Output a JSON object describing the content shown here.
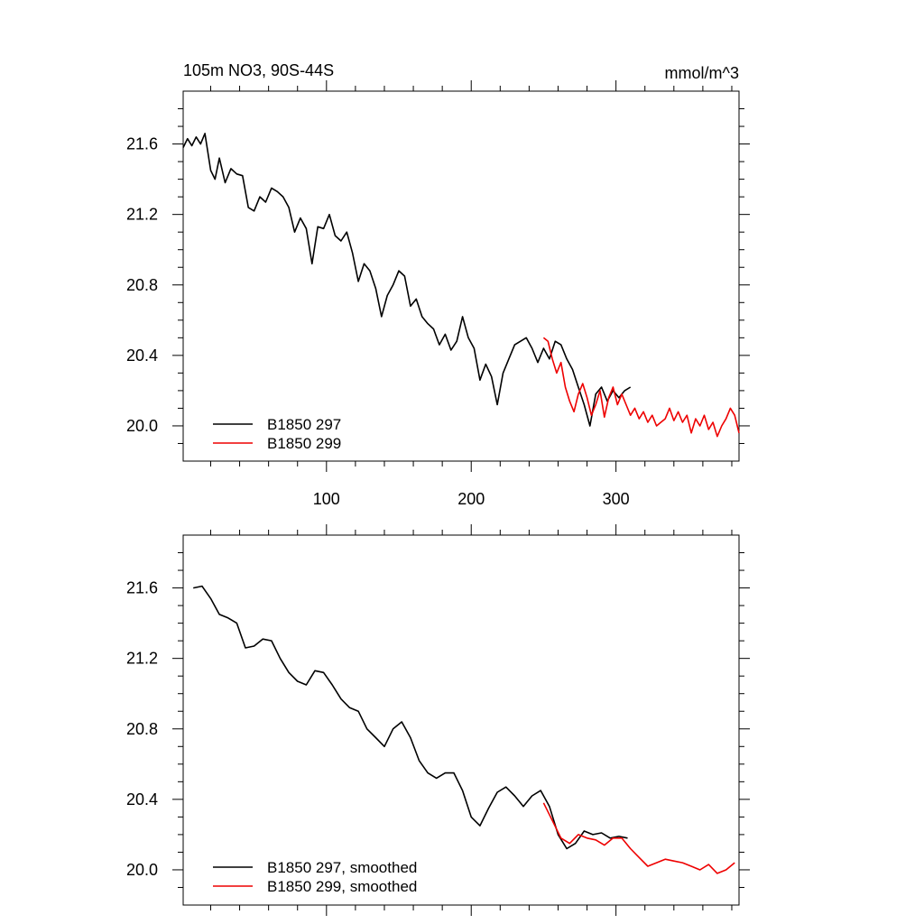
{
  "figure": {
    "title_left": "105m NO3, 90S-44S",
    "title_right": "mmol/m^3"
  },
  "chart_data": [
    {
      "type": "line",
      "title": "105m NO3, 90S-44S",
      "units": "mmol/m^3",
      "xlim": [
        1,
        385
      ],
      "ylim": [
        19.8,
        21.9
      ],
      "x_ticks": [
        100,
        200,
        300
      ],
      "x_tick_labels": [
        "100",
        "200",
        "300"
      ],
      "y_ticks": [
        20.0,
        20.4,
        20.8,
        21.2,
        21.6
      ],
      "y_tick_labels": [
        "20.0",
        "20.4",
        "20.8",
        "21.2",
        "21.6"
      ],
      "legend_position": "bottom-left",
      "series": [
        {
          "name": "B1850 297",
          "color": "#000000",
          "x": [
            1,
            4,
            7,
            10,
            13,
            16,
            20,
            23,
            26,
            30,
            34,
            38,
            42,
            46,
            50,
            54,
            58,
            62,
            66,
            70,
            74,
            78,
            82,
            86,
            90,
            94,
            98,
            102,
            106,
            110,
            114,
            118,
            122,
            126,
            130,
            134,
            138,
            142,
            146,
            150,
            154,
            158,
            162,
            166,
            170,
            174,
            178,
            182,
            186,
            190,
            194,
            198,
            202,
            206,
            210,
            214,
            218,
            222,
            226,
            230,
            234,
            238,
            242,
            246,
            250,
            254,
            258,
            262,
            266,
            270,
            274,
            278,
            282,
            286,
            290,
            294,
            298,
            302,
            306,
            310
          ],
          "values": [
            21.58,
            21.63,
            21.59,
            21.64,
            21.6,
            21.66,
            21.45,
            21.4,
            21.52,
            21.38,
            21.46,
            21.43,
            21.42,
            21.24,
            21.22,
            21.3,
            21.27,
            21.35,
            21.33,
            21.3,
            21.24,
            21.1,
            21.18,
            21.12,
            20.92,
            21.13,
            21.12,
            21.2,
            21.08,
            21.05,
            21.1,
            20.98,
            20.82,
            20.92,
            20.88,
            20.78,
            20.62,
            20.74,
            20.8,
            20.88,
            20.85,
            20.68,
            20.72,
            20.62,
            20.58,
            20.55,
            20.46,
            20.52,
            20.43,
            20.48,
            20.62,
            20.5,
            20.44,
            20.26,
            20.35,
            20.28,
            20.12,
            20.3,
            20.38,
            20.46,
            20.48,
            20.5,
            20.44,
            20.36,
            20.44,
            20.38,
            20.48,
            20.46,
            20.38,
            20.32,
            20.22,
            20.12,
            20.0,
            20.18,
            20.22,
            20.14,
            20.2,
            20.16,
            20.2,
            20.22
          ]
        },
        {
          "name": "B1850 299",
          "color": "#ee0000",
          "x": [
            250,
            253,
            256,
            259,
            262,
            265,
            268,
            271,
            274,
            277,
            280,
            283,
            286,
            289,
            292,
            295,
            298,
            301,
            304,
            307,
            310,
            313,
            316,
            319,
            322,
            325,
            328,
            331,
            334,
            337,
            340,
            343,
            346,
            349,
            352,
            355,
            358,
            361,
            364,
            367,
            370,
            373,
            376,
            379,
            382,
            385
          ],
          "values": [
            20.5,
            20.48,
            20.38,
            20.3,
            20.36,
            20.22,
            20.14,
            20.08,
            20.18,
            20.24,
            20.16,
            20.06,
            20.12,
            20.2,
            20.05,
            20.16,
            20.22,
            20.12,
            20.18,
            20.12,
            20.06,
            20.1,
            20.04,
            20.08,
            20.02,
            20.06,
            20.0,
            20.02,
            20.04,
            20.1,
            20.03,
            20.08,
            20.02,
            20.06,
            19.96,
            20.04,
            20.0,
            20.06,
            19.98,
            20.02,
            19.94,
            20.0,
            20.04,
            20.1,
            20.06,
            19.96
          ]
        }
      ]
    },
    {
      "type": "line",
      "title": "",
      "xlim": [
        1,
        385
      ],
      "ylim": [
        19.8,
        21.9
      ],
      "x_ticks": [
        100,
        200,
        300
      ],
      "x_tick_labels": [],
      "y_ticks": [
        20.0,
        20.4,
        20.8,
        21.2,
        21.6
      ],
      "y_tick_labels": [
        "20.0",
        "20.4",
        "20.8",
        "21.2",
        "21.6"
      ],
      "legend_position": "bottom-left",
      "series": [
        {
          "name": "B1850 297, smoothed",
          "color": "#000000",
          "x": [
            8,
            14,
            20,
            26,
            32,
            38,
            44,
            50,
            56,
            62,
            68,
            74,
            80,
            86,
            92,
            98,
            104,
            110,
            116,
            122,
            128,
            134,
            140,
            146,
            152,
            158,
            164,
            170,
            176,
            182,
            188,
            194,
            200,
            206,
            212,
            218,
            224,
            230,
            236,
            242,
            248,
            254,
            260,
            266,
            272,
            278,
            284,
            290,
            296,
            302,
            308
          ],
          "values": [
            21.6,
            21.61,
            21.54,
            21.45,
            21.43,
            21.4,
            21.26,
            21.27,
            21.31,
            21.3,
            21.2,
            21.12,
            21.07,
            21.05,
            21.13,
            21.12,
            21.05,
            20.97,
            20.92,
            20.9,
            20.8,
            20.75,
            20.7,
            20.8,
            20.84,
            20.75,
            20.62,
            20.55,
            20.52,
            20.55,
            20.55,
            20.45,
            20.3,
            20.25,
            20.35,
            20.44,
            20.47,
            20.42,
            20.36,
            20.42,
            20.45,
            20.36,
            20.2,
            20.12,
            20.15,
            20.22,
            20.2,
            20.21,
            20.18,
            20.19,
            20.18
          ]
        },
        {
          "name": "B1850 299, smoothed",
          "color": "#ee0000",
          "x": [
            250,
            256,
            262,
            268,
            274,
            280,
            286,
            292,
            298,
            304,
            310,
            316,
            322,
            328,
            334,
            340,
            346,
            352,
            358,
            364,
            370,
            376,
            382
          ],
          "values": [
            20.38,
            20.28,
            20.18,
            20.15,
            20.2,
            20.18,
            20.17,
            20.14,
            20.18,
            20.18,
            20.12,
            20.07,
            20.02,
            20.04,
            20.06,
            20.05,
            20.04,
            20.02,
            20.0,
            20.03,
            19.98,
            20.0,
            20.04
          ]
        }
      ]
    }
  ]
}
